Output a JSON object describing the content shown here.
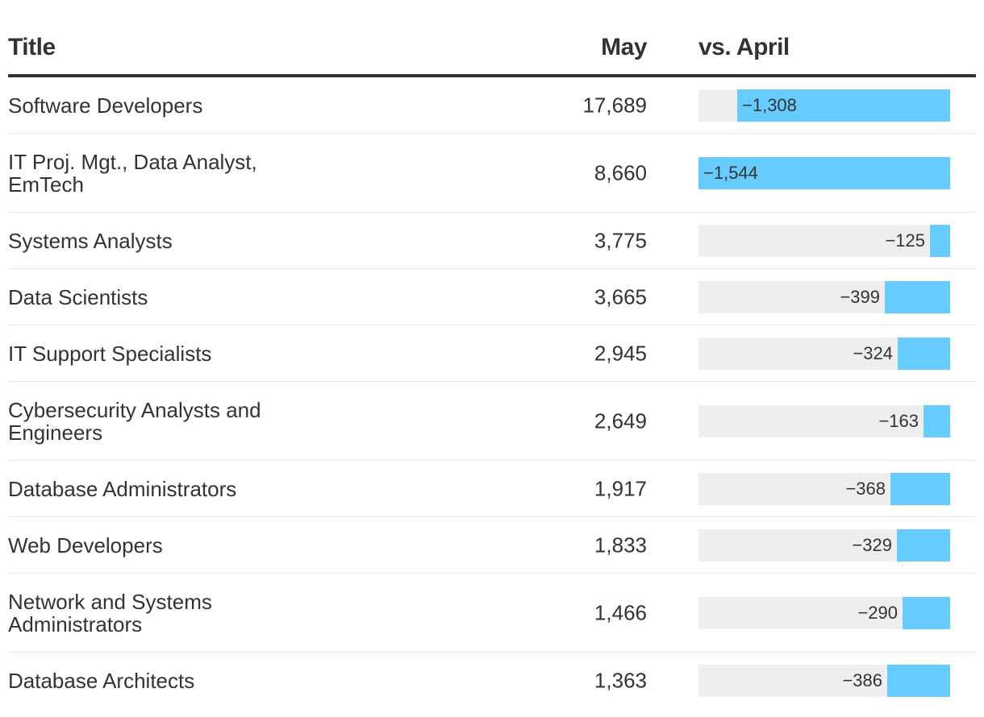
{
  "chart_data": {
    "type": "table",
    "columns": [
      "Title",
      "May",
      "vs. April"
    ],
    "rows": [
      {
        "title": "Software Developers",
        "may": "17,689",
        "change": -1308,
        "change_label": "−1,308"
      },
      {
        "title": "IT Proj. Mgt., Data Analyst, EmTech",
        "may": "8,660",
        "change": -1544,
        "change_label": "−1,544"
      },
      {
        "title": "Systems Analysts",
        "may": "3,775",
        "change": -125,
        "change_label": "−125"
      },
      {
        "title": "Data Scientists",
        "may": "3,665",
        "change": -399,
        "change_label": "−399"
      },
      {
        "title": "IT Support Specialists",
        "may": "2,945",
        "change": -324,
        "change_label": "−324"
      },
      {
        "title": "Cybersecurity Analysts and Engineers",
        "may": "2,649",
        "change": -163,
        "change_label": "−163"
      },
      {
        "title": "Database Administrators",
        "may": "1,917",
        "change": -368,
        "change_label": "−368"
      },
      {
        "title": "Web Developers",
        "may": "1,833",
        "change": -329,
        "change_label": "−329"
      },
      {
        "title": "Network and Systems Administrators",
        "may": "1,466",
        "change": -290,
        "change_label": "−290"
      },
      {
        "title": "Database Architects",
        "may": "1,363",
        "change": -386,
        "change_label": "−386"
      }
    ],
    "bar_scale_max": 1544,
    "bar_color": "#66ccff",
    "track_color": "#eeeeee"
  }
}
